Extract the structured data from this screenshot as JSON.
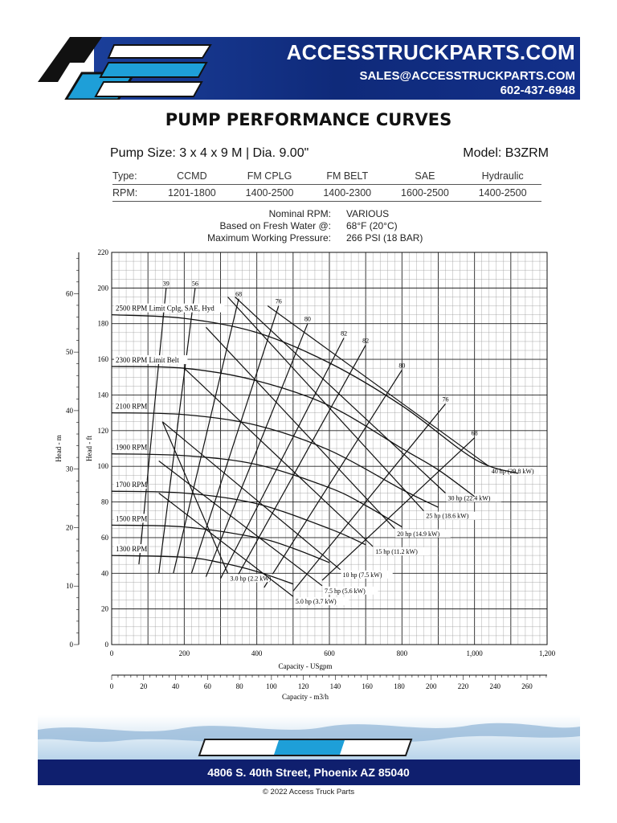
{
  "header": {
    "brand_logo_text": "ACCESS TRUCK PARTS",
    "site": "ACCESSTRUCKPARTS.COM",
    "email": "SALES@ACCESSTRUCKPARTS.COM",
    "phone": "602-437-6948",
    "colors": {
      "banner": "#0f2a7a",
      "logo_blue": "#1e9fd8"
    }
  },
  "title": "PUMP PERFORMANCE CURVES",
  "pump_size": "Pump Size: 3 x 4 x 9 M | Dia. 9.00\"",
  "model": "Model: B3ZRM",
  "spec_table": {
    "type_label": "Type:",
    "rpm_label": "RPM:",
    "columns": [
      {
        "type": "CCMD",
        "rpm": "1201-1800"
      },
      {
        "type": "FM CPLG",
        "rpm": "1400-2500"
      },
      {
        "type": "FM BELT",
        "rpm": "1400-2300"
      },
      {
        "type": "SAE",
        "rpm": "1600-2500"
      },
      {
        "type": "Hydraulic",
        "rpm": "1400-2500"
      }
    ]
  },
  "conditions": [
    {
      "label": "Nominal RPM:",
      "value": "VARIOUS"
    },
    {
      "label": "Based on Fresh Water @:",
      "value": "68°F (20°C)"
    },
    {
      "label": "Maximum Working Pressure:",
      "value": "266 PSI (18 BAR)"
    }
  ],
  "chart_data": {
    "type": "line",
    "xlabel": "Capacity - USgpm",
    "xlabel_secondary": "Capacity - m3/h",
    "ylabel": "Head - ft",
    "ylabel_secondary": "Head - m",
    "xlim": [
      0,
      1200
    ],
    "ylim": [
      0,
      220
    ],
    "x_ticks": [
      "0",
      "200",
      "400",
      "600",
      "800",
      "1,000",
      "1,200"
    ],
    "y_ticks": [
      "0",
      "20",
      "40",
      "60",
      "80",
      "100",
      "120",
      "140",
      "160",
      "180",
      "200",
      "220"
    ],
    "x2_ticks": [
      "0",
      "20",
      "40",
      "60",
      "80",
      "100",
      "120",
      "140",
      "160",
      "180",
      "200",
      "220",
      "240",
      "260"
    ],
    "y2_ticks": [
      "0",
      "10",
      "20",
      "30",
      "40",
      "50",
      "60"
    ],
    "grid": true,
    "series": [
      {
        "name": "2500 RPM Limit Cplg, SAE, Hyd",
        "x": [
          0,
          200,
          400,
          600,
          800,
          1000,
          1120
        ],
        "y": [
          185,
          183,
          175,
          158,
          134,
          104,
          96
        ]
      },
      {
        "name": "2300 RPM Limit Belt",
        "x": [
          0,
          200,
          400,
          600,
          800,
          900,
          1000
        ],
        "y": [
          156,
          155,
          148,
          134,
          110,
          98,
          83
        ]
      },
      {
        "name": "2100 RPM",
        "x": [
          0,
          200,
          400,
          600,
          800,
          900
        ],
        "y": [
          130,
          129,
          123,
          109,
          87,
          77
        ]
      },
      {
        "name": "1900 RPM",
        "x": [
          0,
          200,
          400,
          600,
          700,
          800
        ],
        "y": [
          107,
          106,
          101,
          88,
          78,
          66
        ]
      },
      {
        "name": "1700 RPM",
        "x": [
          0,
          200,
          400,
          600,
          700
        ],
        "y": [
          86,
          85,
          79,
          65,
          56
        ]
      },
      {
        "name": "1500 RPM",
        "x": [
          0,
          200,
          400,
          500,
          600
        ],
        "y": [
          67,
          66,
          60,
          54,
          46
        ]
      },
      {
        "name": "1300 RPM",
        "x": [
          0,
          200,
          300,
          400,
          500
        ],
        "y": [
          50,
          49,
          46,
          41,
          34
        ]
      }
    ],
    "efficiency_lines": [
      {
        "label": "39",
        "x": [
          75,
          150
        ],
        "y": [
          45,
          200
        ]
      },
      {
        "label": "56",
        "x": [
          130,
          230
        ],
        "y": [
          40,
          200
        ]
      },
      {
        "label": "68",
        "x": [
          170,
          350
        ],
        "y": [
          40,
          194
        ]
      },
      {
        "label": "76",
        "x": [
          220,
          460
        ],
        "y": [
          40,
          190
        ]
      },
      {
        "label": "80",
        "x": [
          260,
          540
        ],
        "y": [
          38,
          180
        ]
      },
      {
        "label": "82",
        "x": [
          300,
          640
        ],
        "y": [
          37,
          172
        ]
      },
      {
        "label": "82",
        "x": [
          340,
          700
        ],
        "y": [
          36,
          168
        ]
      },
      {
        "label": "80",
        "x": [
          420,
          800
        ],
        "y": [
          32,
          154
        ]
      },
      {
        "label": "76",
        "x": [
          500,
          920
        ],
        "y": [
          30,
          135
        ]
      },
      {
        "label": "68",
        "x": [
          580,
          1000
        ],
        "y": [
          36,
          116
        ]
      }
    ],
    "power_lines": [
      {
        "label": "3.0 hp (2.2 kW)",
        "x": [
          140,
          320
        ],
        "y": [
          125,
          40
        ]
      },
      {
        "label": "5.0 hp (3.7 kW)",
        "x": [
          130,
          500
        ],
        "y": [
          85,
          27
        ]
      },
      {
        "label": "7.5 hp (5.6 kW)",
        "x": [
          130,
          580
        ],
        "y": [
          103,
          33
        ]
      },
      {
        "label": "10 hp (7.5 kW)",
        "x": [
          140,
          630
        ],
        "y": [
          125,
          42
        ]
      },
      {
        "label": "15 hp (11.2 kW)",
        "x": [
          200,
          720
        ],
        "y": [
          155,
          55
        ]
      },
      {
        "label": "20 hp (14.9 kW)",
        "x": [
          260,
          780
        ],
        "y": [
          178,
          65
        ]
      },
      {
        "label": "25 hp (18.6 kW)",
        "x": [
          320,
          860
        ],
        "y": [
          195,
          75
        ]
      },
      {
        "label": "30 hp (22.4 kW)",
        "x": [
          340,
          920
        ],
        "y": [
          195,
          85
        ]
      },
      {
        "label": "40 hp (29.8 kW)",
        "x": [
          430,
          1040
        ],
        "y": [
          190,
          100
        ]
      }
    ]
  },
  "footer": {
    "logo_text": "ACCESS TRUCK PARTS",
    "address": "4806 S. 40th Street, Phoenix AZ 85040",
    "copyright": "© 2022 Access Truck Parts"
  }
}
